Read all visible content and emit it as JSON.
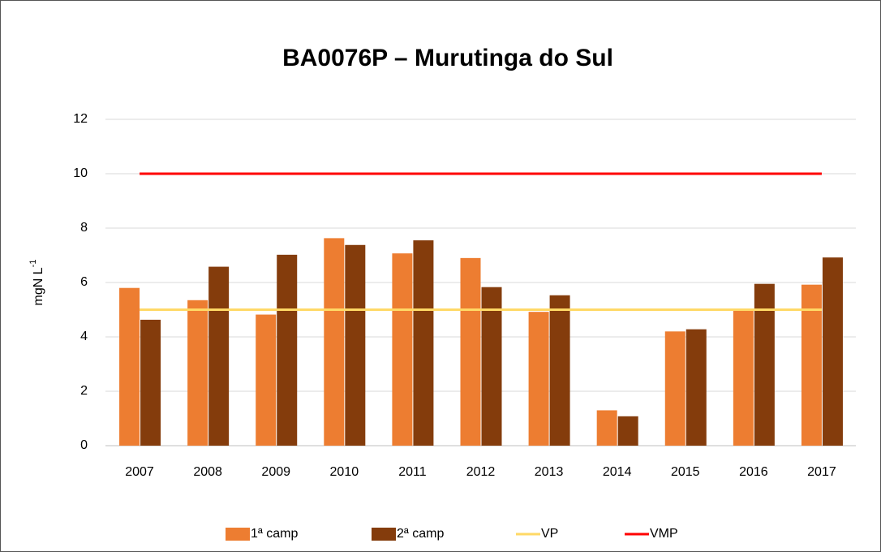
{
  "chart_data": {
    "type": "bar",
    "title": "BA0076P – Murutinga do Sul",
    "y_label": {
      "text": "mgN L",
      "superscript": "-1"
    },
    "categories": [
      "2007",
      "2008",
      "2009",
      "2010",
      "2011",
      "2012",
      "2013",
      "2014",
      "2015",
      "2016",
      "2017"
    ],
    "series": [
      {
        "name": "1ª camp",
        "type": "bar",
        "color": "#ED7D31",
        "values": [
          5.8,
          5.35,
          4.82,
          7.63,
          7.07,
          6.9,
          4.92,
          1.3,
          4.2,
          4.98,
          5.92
        ]
      },
      {
        "name": "2ª camp",
        "type": "bar",
        "color": "#843C0C",
        "values": [
          4.63,
          6.58,
          7.02,
          7.38,
          7.55,
          5.83,
          5.53,
          1.08,
          4.28,
          5.95,
          6.92
        ]
      },
      {
        "name": "VP",
        "type": "line",
        "color": "#FFD966",
        "values": [
          5,
          5,
          5,
          5,
          5,
          5,
          5,
          5,
          5,
          5,
          5
        ]
      },
      {
        "name": "VMP",
        "type": "line",
        "color": "#FF0000",
        "values": [
          10,
          10,
          10,
          10,
          10,
          10,
          10,
          10,
          10,
          10,
          10
        ]
      }
    ],
    "ylim": [
      0,
      12
    ],
    "yticks": [
      0,
      2,
      4,
      6,
      8,
      10,
      12
    ],
    "grid": true
  }
}
